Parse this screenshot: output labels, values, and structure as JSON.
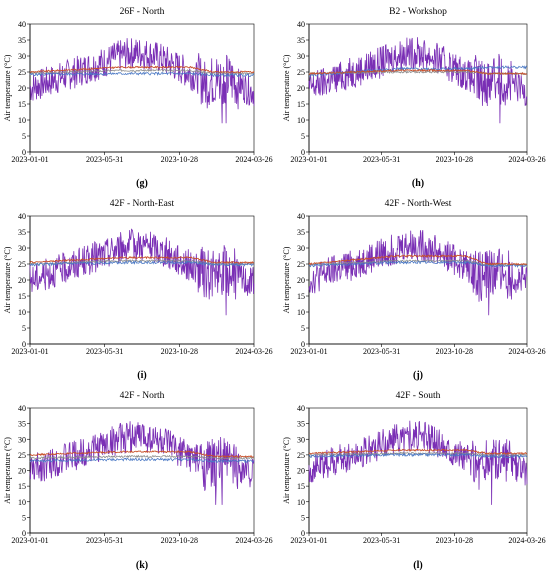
{
  "chart_data": [
    {
      "type": "line",
      "panel": "g-top",
      "title": "26F - North",
      "panel_label": "",
      "ylabel": "Air temperature (°C)",
      "ylim": [
        0,
        40
      ],
      "yticks": [
        0,
        5,
        10,
        15,
        20,
        25,
        30,
        35,
        40
      ],
      "x_ticks": [
        "2023-01-01",
        "2023-05-31",
        "2023-10-28",
        "2024-03-26"
      ],
      "series_colors": {
        "outdoor": "#7a2fb5",
        "indoor_a": "#c8502a",
        "indoor_b": "#4a78c4",
        "indoor_c": "#8a8a8a"
      },
      "indoor_levels": {
        "indoor_a": [
          25.0,
          26.5,
          25.0
        ],
        "indoor_b": [
          24.2,
          24.5,
          24.0
        ],
        "indoor_c": [
          24.6,
          25.5,
          24.6
        ]
      }
    },
    {
      "type": "line",
      "panel": "h-top",
      "title": "B2 - Workshop",
      "panel_label": "",
      "ylabel": "Air temperature (°C)",
      "ylim": [
        0,
        40
      ],
      "yticks": [
        0,
        5,
        10,
        15,
        20,
        25,
        30,
        35,
        40
      ],
      "x_ticks": [
        "2023-01-01",
        "2023-05-31",
        "2023-10-28",
        "2024-03-26"
      ],
      "series_colors": {
        "outdoor": "#7a2fb5",
        "indoor_a": "#c8502a",
        "indoor_b": "#4a78c4",
        "indoor_c": "#8a8a8a"
      },
      "indoor_levels": {
        "indoor_a": [
          24.5,
          25.5,
          24.5
        ],
        "indoor_b": [
          24.0,
          26.0,
          26.5
        ],
        "indoor_c": [
          24.5,
          25.0,
          24.5
        ]
      }
    },
    {
      "type": "line",
      "panel": "i-mid",
      "title": "42F - North-East",
      "panel_label": "(i)",
      "ylabel": "Air temperature (°C)",
      "ylim": [
        0,
        40
      ],
      "yticks": [
        0,
        5,
        10,
        15,
        20,
        25,
        30,
        35,
        40
      ],
      "x_ticks": [
        "2023-01-01",
        "2023-05-31",
        "2023-10-28",
        "2024-03-26"
      ],
      "series_colors": {
        "outdoor": "#7a2fb5",
        "indoor_a": "#c8502a",
        "indoor_b": "#4a78c4",
        "indoor_c": "#8a8a8a"
      },
      "indoor_levels": {
        "indoor_a": [
          25.5,
          27.0,
          25.5
        ],
        "indoor_b": [
          24.8,
          25.5,
          24.8
        ],
        "indoor_c": [
          25.0,
          26.0,
          25.0
        ]
      }
    },
    {
      "type": "line",
      "panel": "j-mid",
      "title": "42F - North-West",
      "panel_label": "(j)",
      "ylabel": "Air temperature (°C)",
      "ylim": [
        0,
        40
      ],
      "yticks": [
        0,
        5,
        10,
        15,
        20,
        25,
        30,
        35,
        40
      ],
      "x_ticks": [
        "2023-01-01",
        "2023-05-31",
        "2023-10-28",
        "2024-03-26"
      ],
      "series_colors": {
        "outdoor": "#7a2fb5",
        "indoor_a": "#c8502a",
        "indoor_b": "#4a78c4",
        "indoor_c": "#8a8a8a"
      },
      "indoor_levels": {
        "indoor_a": [
          25.0,
          27.5,
          25.0
        ],
        "indoor_b": [
          24.5,
          25.5,
          24.5
        ],
        "indoor_c": [
          24.8,
          26.0,
          24.8
        ]
      }
    },
    {
      "type": "line",
      "panel": "k-bot",
      "title": "42F - North",
      "panel_label": "(k)",
      "ylabel": "Air temperature (°C)",
      "ylim": [
        0,
        40
      ],
      "yticks": [
        0,
        5,
        10,
        15,
        20,
        25,
        30,
        35,
        40
      ],
      "x_ticks": [
        "2023-01-01",
        "2023-05-31",
        "2023-10-28",
        "2024-03-26"
      ],
      "series_colors": {
        "outdoor": "#7a2fb5",
        "indoor_a": "#c8502a",
        "indoor_b": "#4a78c4",
        "indoor_c": "#8a8a8a"
      },
      "indoor_levels": {
        "indoor_a": [
          25.0,
          26.0,
          24.5
        ],
        "indoor_b": [
          23.0,
          23.5,
          23.0
        ],
        "indoor_c": [
          24.0,
          24.5,
          24.0
        ]
      }
    },
    {
      "type": "line",
      "panel": "l-bot",
      "title": "42F - South",
      "panel_label": "(l)",
      "ylabel": "Air temperature (°C)",
      "ylim": [
        0,
        40
      ],
      "yticks": [
        0,
        5,
        10,
        15,
        20,
        25,
        30,
        35,
        40
      ],
      "x_ticks": [
        "2023-01-01",
        "2023-05-31",
        "2023-10-28",
        "2024-03-26"
      ],
      "series_colors": {
        "outdoor": "#7a2fb5",
        "indoor_a": "#c8502a",
        "indoor_b": "#4a78c4",
        "indoor_c": "#8a8a8a"
      },
      "indoor_levels": {
        "indoor_a": [
          25.5,
          26.5,
          25.5
        ],
        "indoor_b": [
          24.5,
          25.0,
          24.5
        ],
        "indoor_c": [
          25.0,
          25.5,
          25.0
        ]
      }
    }
  ],
  "top_row_labels": [
    "(g)",
    "(h)"
  ]
}
